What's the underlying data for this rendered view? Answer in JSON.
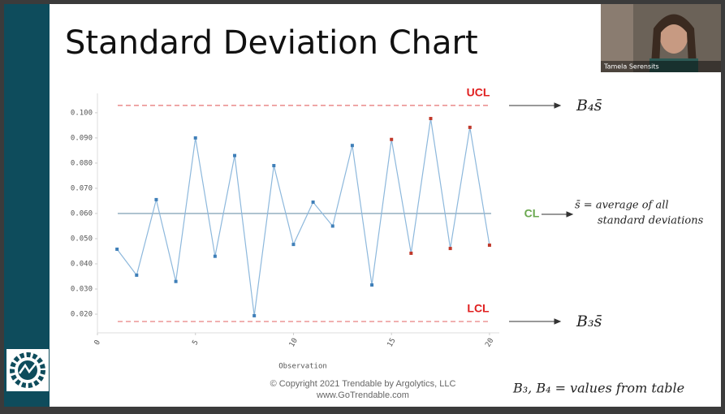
{
  "chart_data": {
    "type": "line",
    "title": "Standard Deviation Chart",
    "x_label": "Observation",
    "x": [
      1,
      2,
      3,
      4,
      5,
      6,
      7,
      8,
      9,
      10,
      11,
      12,
      13,
      14,
      15,
      16,
      17,
      18,
      19,
      20
    ],
    "series": [
      {
        "color": "#8db8dc",
        "values": [
          0.0458,
          0.0355,
          0.0655,
          0.033,
          0.09,
          0.043,
          0.083,
          0.0194,
          0.079,
          0.0477,
          0.0645,
          0.055,
          0.087,
          0.0316,
          0.0894,
          0.0442,
          0.0977,
          0.0461,
          0.0942,
          0.0474
        ],
        "point_colors": [
          "#3f7fb8",
          "#3f7fb8",
          "#3f7fb8",
          "#3f7fb8",
          "#3f7fb8",
          "#3f7fb8",
          "#3f7fb8",
          "#3f7fb8",
          "#3f7fb8",
          "#3f7fb8",
          "#3f7fb8",
          "#3f7fb8",
          "#3f7fb8",
          "#3f7fb8",
          "#c0392b",
          "#c0392b",
          "#c0392b",
          "#c0392b",
          "#c0392b",
          "#c0392b"
        ]
      }
    ],
    "xlim": [
      0,
      20.5
    ],
    "xticks": [
      0,
      5,
      10,
      15,
      20
    ],
    "ylim": [
      0.0126,
      0.1077
    ],
    "yticks": [
      {
        "value": 0.02,
        "label": "0.020"
      },
      {
        "value": 0.03,
        "label": "0.030"
      },
      {
        "value": 0.04,
        "label": "0.040"
      },
      {
        "value": 0.05,
        "label": "0.050"
      },
      {
        "value": 0.06,
        "label": "0.060"
      },
      {
        "value": 0.07,
        "label": "0.070"
      },
      {
        "value": 0.08,
        "label": "0.080"
      },
      {
        "value": 0.09,
        "label": "0.090"
      },
      {
        "value": 0.1,
        "label": "0.100"
      }
    ],
    "grid": false,
    "control_lines": [
      {
        "name": "UCL",
        "value": 0.1029,
        "color": "#e57373",
        "label_color": "#e02020",
        "dashed": true
      },
      {
        "name": "CL",
        "value": 0.06,
        "color": "#7f9fb5",
        "label_color": "#6aa84f",
        "dashed": false
      },
      {
        "name": "LCL",
        "value": 0.0171,
        "color": "#e57373",
        "label_color": "#e02020",
        "dashed": true
      }
    ],
    "notes": {
      "ucl": "B₄s̄",
      "cl_line1": "s̄ = average of all",
      "cl_line2": "standard deviations",
      "lcl": "B₃s̄",
      "table": "B₃, B₄ = values from table"
    },
    "footer": {
      "copyright": "© Copyright 2021   Trendable by Argolytics, LLC",
      "url": "www.GoTrendable.com"
    },
    "presenter": "Tamela Serensits"
  }
}
